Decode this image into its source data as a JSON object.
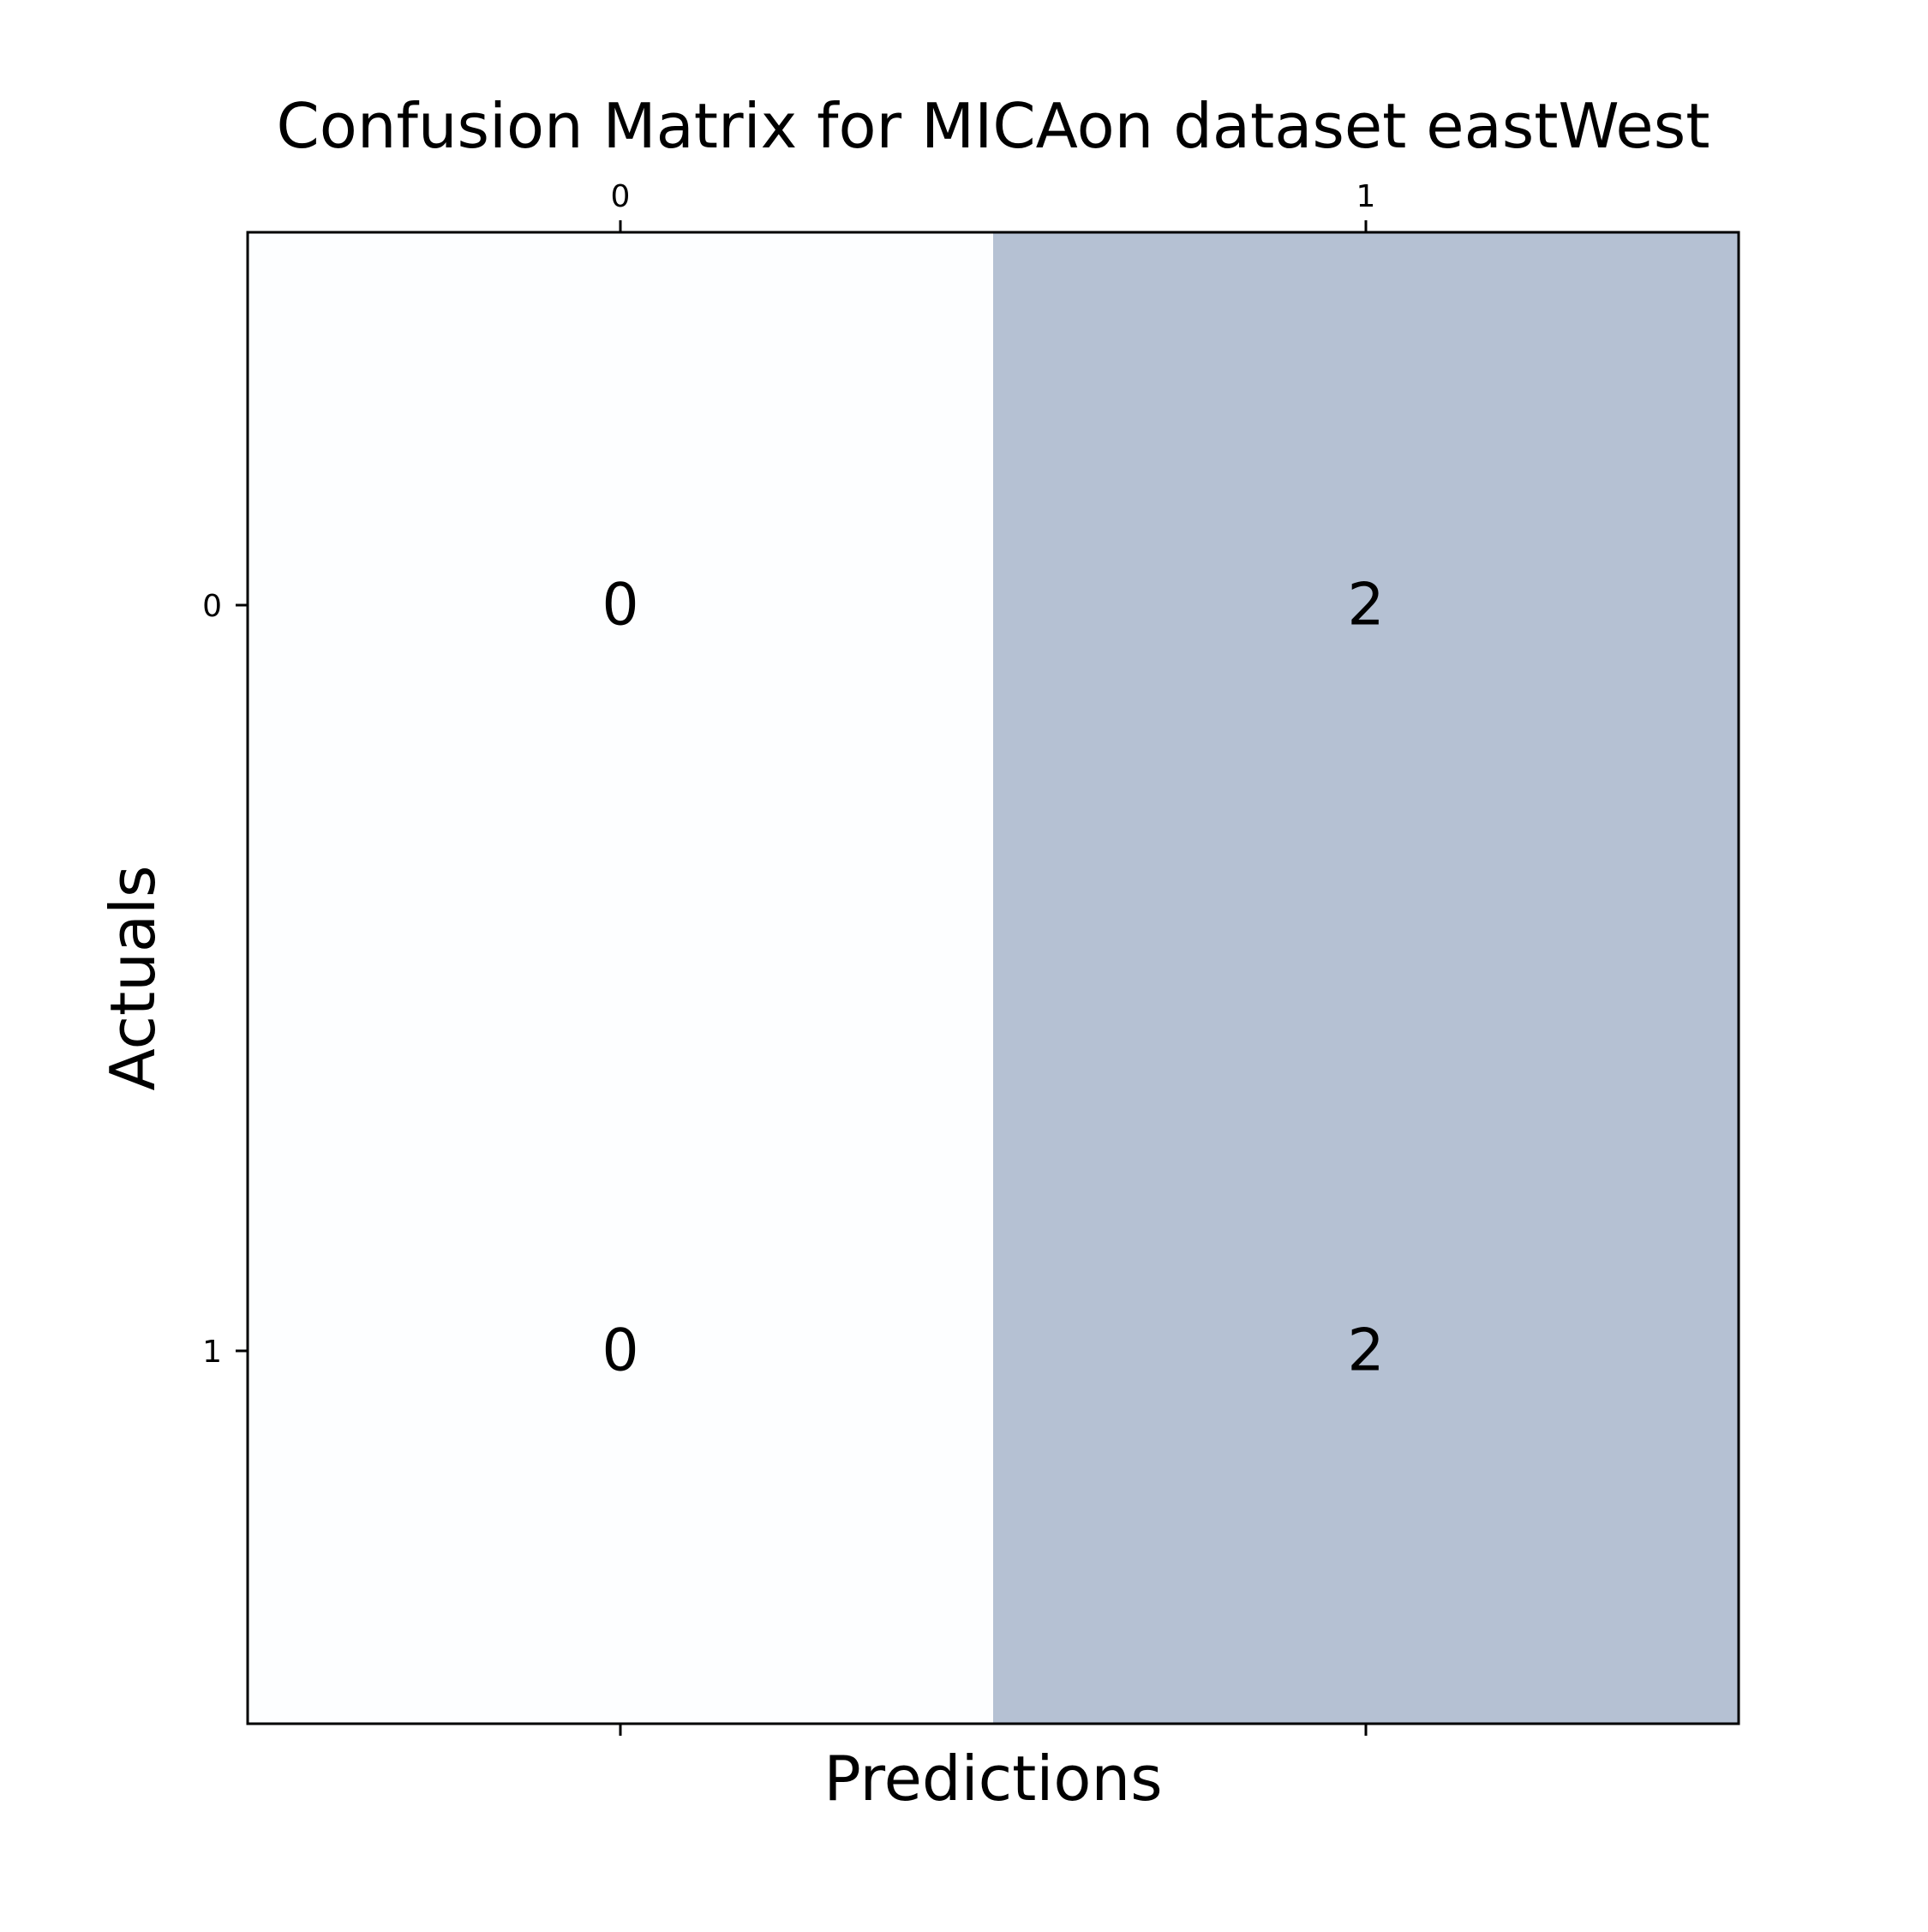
{
  "chart_data": {
    "type": "heatmap",
    "title": "Confusion Matrix for MICAon dataset eastWest",
    "xlabel": "Predictions",
    "ylabel": "Actuals",
    "x_categories": [
      "0",
      "1"
    ],
    "y_categories": [
      "0",
      "1"
    ],
    "values": [
      [
        0,
        2
      ],
      [
        0,
        2
      ]
    ],
    "x_tick_position": "top",
    "grid": false,
    "colormap": {
      "low": "#f7fbff",
      "high": "#08306b",
      "alpha": 0.3,
      "vmin": 0,
      "vmax": 2
    }
  }
}
